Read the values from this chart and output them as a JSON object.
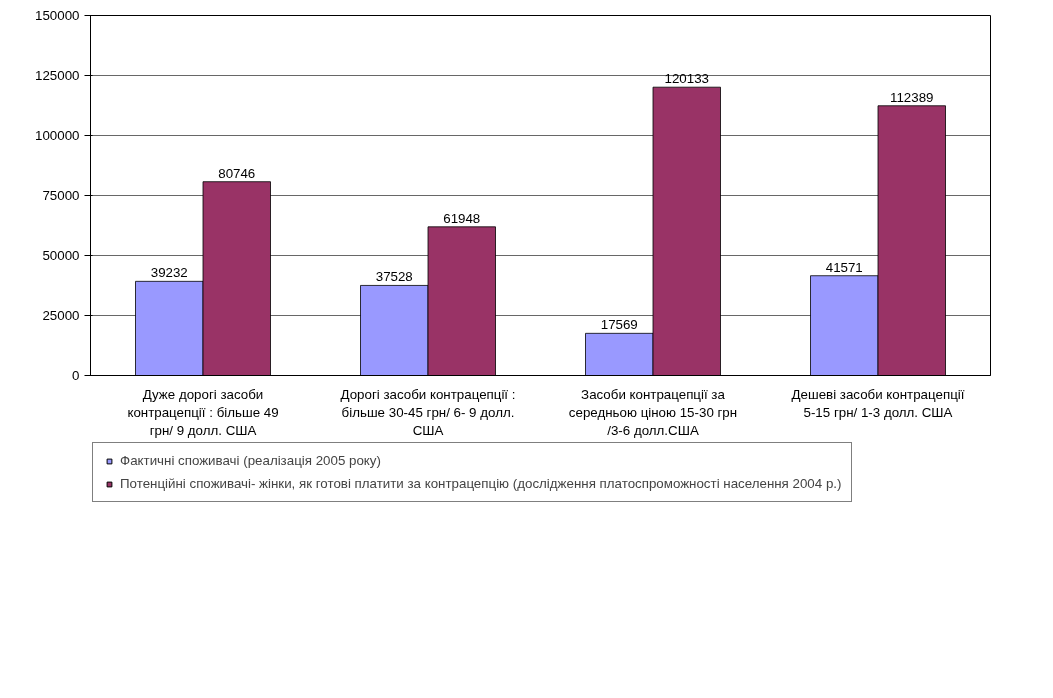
{
  "chart_data": {
    "type": "bar",
    "categories": [
      "Дуже дорогі засоби контрацепції : більше 49 грн/ 9 долл. США",
      "Дорогі засоби контрацепції : більше 30-45 грн/ 6- 9 долл. США",
      "Засоби контрацепції за середньою ціною 15-30 грн /3-6 долл.США",
      "Дешеві засоби контрацепції 5-15 грн/ 1-3 долл. США"
    ],
    "series": [
      {
        "name": "Фактичні споживачі (реалізація 2005 року)",
        "color": "#9999ff",
        "values": [
          39232,
          37528,
          17569,
          41571
        ]
      },
      {
        "name": "Потенційні споживачі- жінки, як готові платити за контрацепцію (дослідження платоспроможності населення 2004 р.)",
        "color": "#993366",
        "values": [
          80746,
          61948,
          120133,
          112389
        ]
      }
    ],
    "ylim": [
      0,
      150000
    ],
    "yticks": [
      0,
      25000,
      50000,
      75000,
      100000,
      125000,
      150000
    ],
    "grid": "y",
    "legend": "bottom",
    "data_labels": true
  }
}
